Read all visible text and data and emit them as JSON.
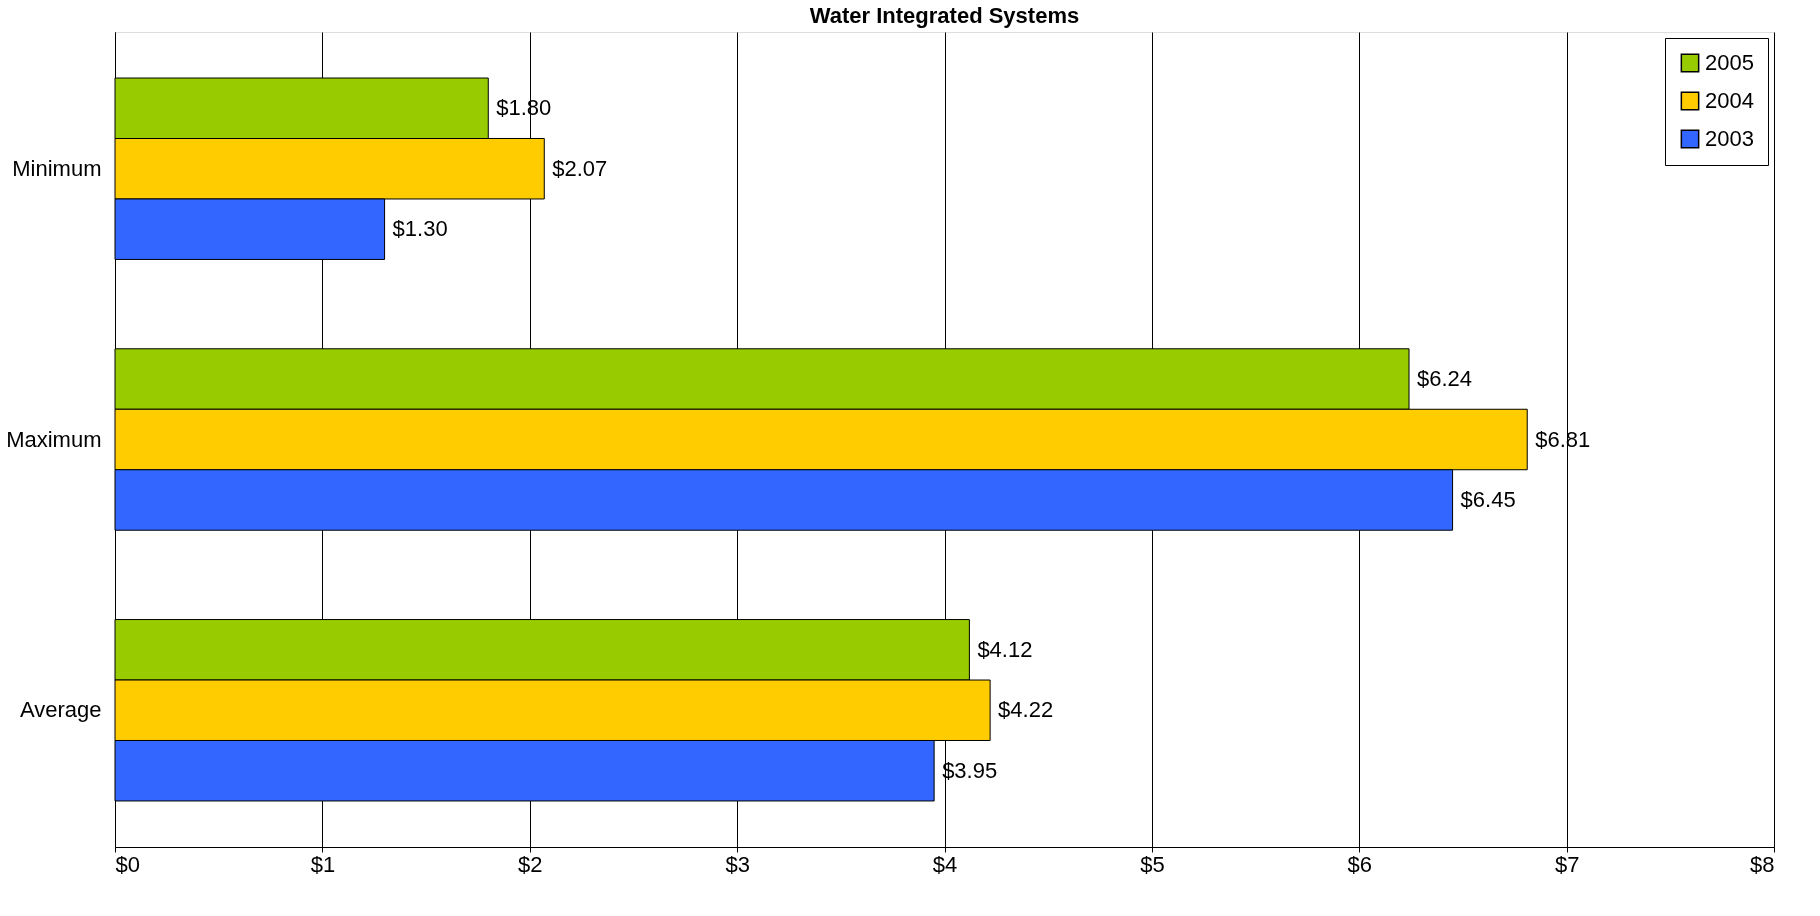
{
  "chart_data": {
    "type": "bar",
    "orientation": "horizontal",
    "title": "Water Integrated Systems",
    "categories": [
      "Minimum",
      "Maximum",
      "Average"
    ],
    "series": [
      {
        "name": "2005",
        "color": "#99cc00",
        "values": [
          1.8,
          6.24,
          4.12
        ],
        "value_labels": [
          "$1.80",
          "$6.24",
          "$4.12"
        ]
      },
      {
        "name": "2004",
        "color": "#ffcc00",
        "values": [
          2.07,
          6.81,
          4.22
        ],
        "value_labels": [
          "$2.07",
          "$6.81",
          "$4.22"
        ]
      },
      {
        "name": "2003",
        "color": "#3366ff",
        "values": [
          1.3,
          6.45,
          3.95
        ],
        "value_labels": [
          "$1.30",
          "$6.45",
          "$3.95"
        ]
      }
    ],
    "xlim": [
      0,
      8
    ],
    "xticks": [
      {
        "value": 0,
        "label": "$0"
      },
      {
        "value": 1,
        "label": "$1"
      },
      {
        "value": 2,
        "label": "$2"
      },
      {
        "value": 3,
        "label": "$3"
      },
      {
        "value": 4,
        "label": "$4"
      },
      {
        "value": 5,
        "label": "$5"
      },
      {
        "value": 6,
        "label": "$6"
      },
      {
        "value": 7,
        "label": "$7"
      },
      {
        "value": 8,
        "label": "$8"
      }
    ],
    "grid": "x",
    "legend": "top right"
  }
}
